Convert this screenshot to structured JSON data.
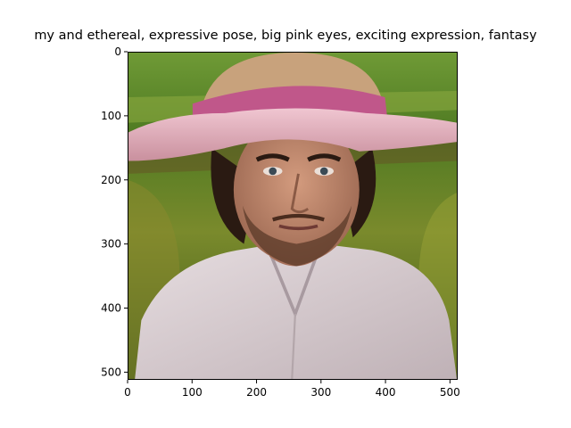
{
  "figure": {
    "title": "my and ethereal, expressive pose, big pink eyes, exciting expression, fantasy"
  },
  "image": {
    "subject": "portrait-man-in-pink-straw-hat",
    "palette": {
      "field_green": "#5f8a2b",
      "field_dark": "#2f4a18",
      "hat_straw": "#c8a27c",
      "hat_band": "#c0578a",
      "brim": "#e7b8c4",
      "skin": "#c08a70",
      "hair": "#2a1a12",
      "shirt": "#d9cfd2"
    }
  },
  "axes": {
    "x_ticks": [
      "0",
      "100",
      "200",
      "300",
      "400",
      "500"
    ],
    "y_ticks": [
      "0",
      "100",
      "200",
      "300",
      "400",
      "500"
    ],
    "tick_values": [
      0,
      100,
      200,
      300,
      400,
      500
    ],
    "xlim": [
      0,
      512
    ],
    "ylim": [
      512,
      0
    ]
  }
}
